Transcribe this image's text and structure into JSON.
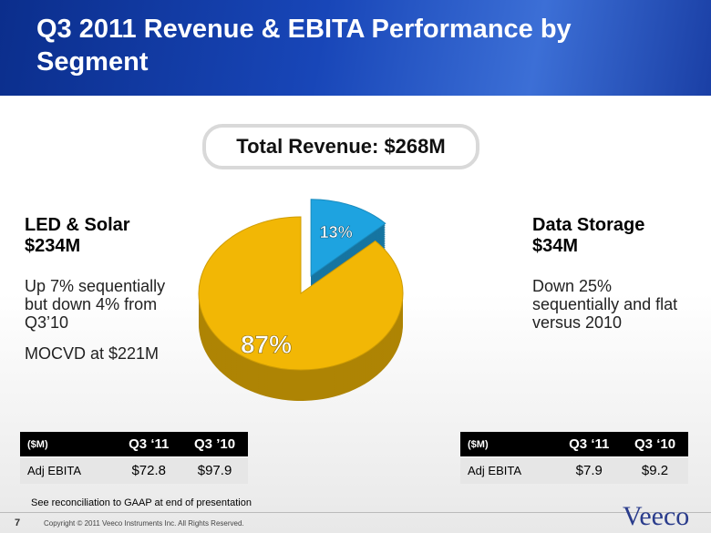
{
  "title": "Q3 2011 Revenue & EBITA Performance by Segment",
  "chart_data": {
    "type": "pie",
    "title": "Total Revenue: $268M",
    "values": [
      87,
      13
    ],
    "value_labels": [
      "87%",
      "13%"
    ],
    "colors": [
      "#f2b705",
      "#1ea3e0"
    ]
  },
  "segments": [
    {
      "name": "LED & Solar",
      "revenue": "$234M",
      "notes": [
        "Up 7% sequentially but down 4% from Q3’10",
        "MOCVD at $221M"
      ],
      "table": {
        "header": [
          "($M)",
          "Q3 ‘11",
          "Q3 ’10"
        ],
        "rows": [
          [
            "Adj EBITA",
            "$72.8",
            "$97.9"
          ]
        ]
      }
    },
    {
      "name": "Data Storage",
      "revenue": "$34M",
      "notes": [
        "Down 25% sequentially and flat versus 2010"
      ],
      "table": {
        "header": [
          "($M)",
          "Q3 ‘11",
          "Q3 ‘10"
        ],
        "rows": [
          [
            "Adj EBITA",
            "$7.9",
            "$9.2"
          ]
        ]
      }
    }
  ],
  "footnote": "See reconciliation to GAAP at end of presentation",
  "page_number": "7",
  "copyright": "Copyright © 2011 Veeco Instruments Inc. All Rights Reserved.",
  "logo": "Veeco"
}
